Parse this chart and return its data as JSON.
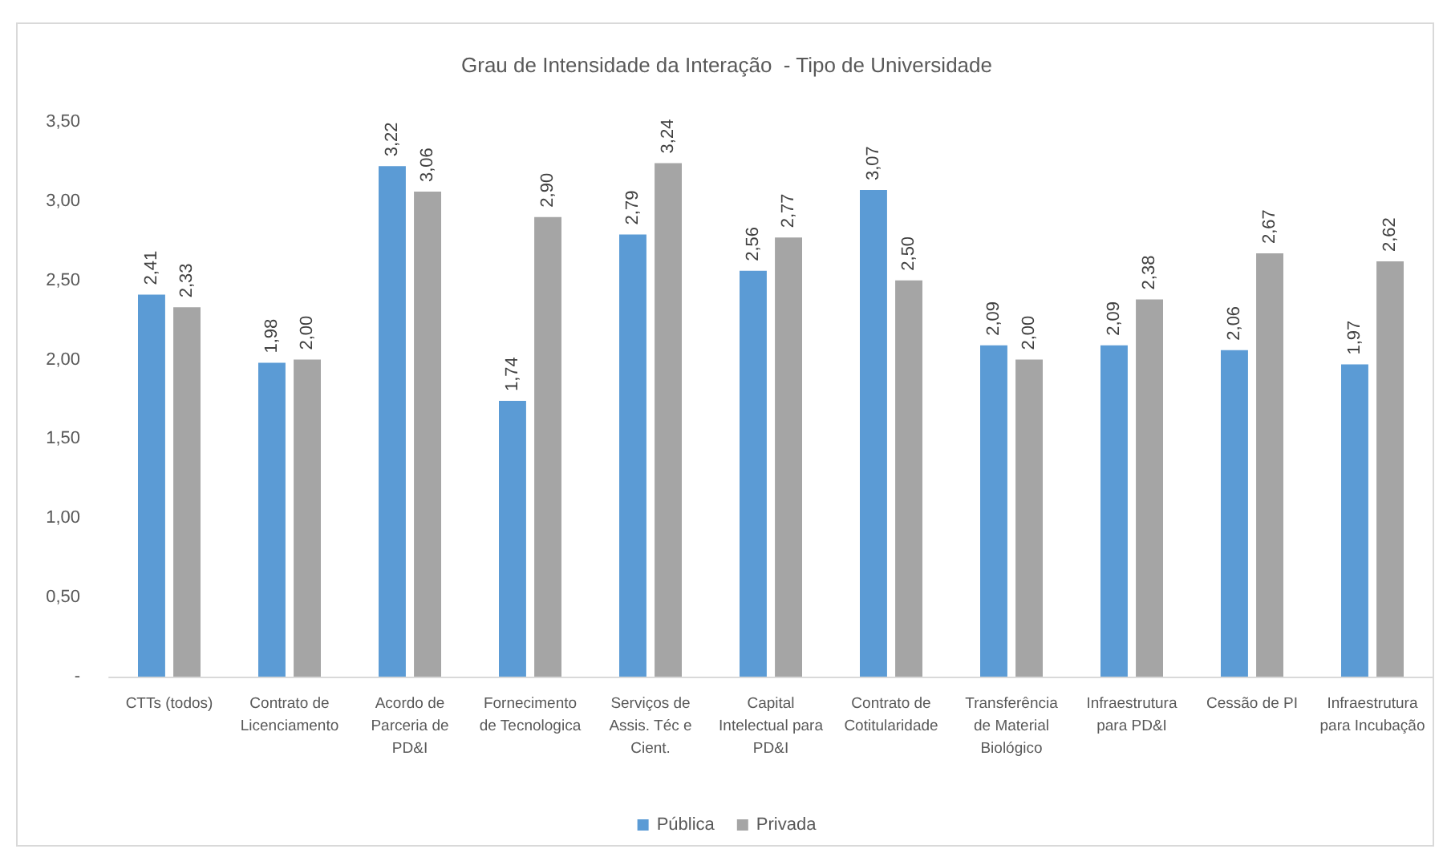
{
  "chart_data": {
    "type": "bar",
    "title": "Grau de Intensidade da Interação  - Tipo de Universidade",
    "categories": [
      "CTTs (todos)",
      "Contrato de Licenciamento",
      "Acordo de Parceria de PD&I",
      "Fornecimento de Tecnologica",
      "Serviços de Assis. Téc e Cient.",
      "Capital Intelectual para PD&I",
      "Contrato de Cotitularidade",
      "Transferência de Material Biológico",
      "Infraestrutura para PD&I",
      "Cessão de PI",
      "Infraestrutura para Incubação"
    ],
    "series": [
      {
        "name": "Pública",
        "color": "#5b9bd5",
        "values": [
          2.41,
          1.98,
          3.22,
          1.74,
          2.79,
          2.56,
          3.07,
          2.09,
          2.09,
          2.06,
          1.97
        ],
        "value_labels": [
          "2,41",
          "1,98",
          "3,22",
          "1,74",
          "2,79",
          "2,56",
          "3,07",
          "2,09",
          "2,09",
          "2,06",
          "1,97"
        ]
      },
      {
        "name": "Privada",
        "color": "#a5a5a5",
        "values": [
          2.33,
          2.0,
          3.06,
          2.9,
          3.24,
          2.77,
          2.5,
          2.0,
          2.38,
          2.67,
          2.62
        ],
        "value_labels": [
          "2,33",
          "2,00",
          "3,06",
          "2,90",
          "3,24",
          "2,77",
          "2,50",
          "2,00",
          "2,38",
          "2,67",
          "2,62"
        ]
      }
    ],
    "ylim": [
      0,
      3.5
    ],
    "yticks": [
      {
        "value": 0,
        "label": "-"
      },
      {
        "value": 0.5,
        "label": "0,50"
      },
      {
        "value": 1,
        "label": "1,00"
      },
      {
        "value": 1.5,
        "label": "1,50"
      },
      {
        "value": 2,
        "label": "2,00"
      },
      {
        "value": 2.5,
        "label": "2,50"
      },
      {
        "value": 3,
        "label": "3,00"
      },
      {
        "value": 3.5,
        "label": "3,50"
      }
    ],
    "grid": false,
    "legend": "bottom"
  }
}
